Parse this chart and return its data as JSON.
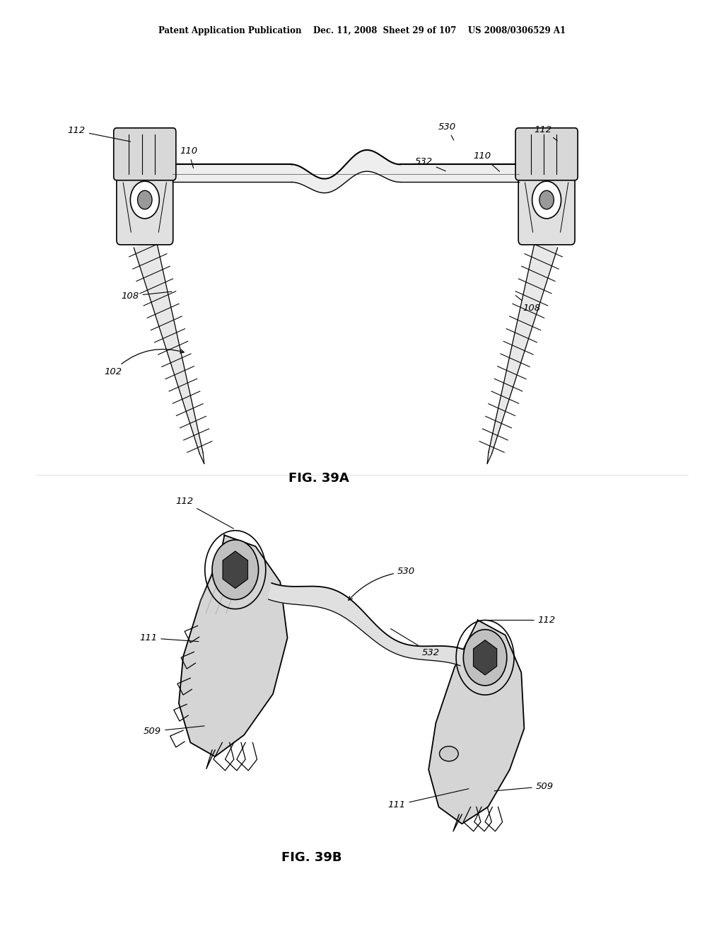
{
  "background_color": "#ffffff",
  "header_text": "Patent Application Publication    Dec. 11, 2008  Sheet 29 of 107    US 2008/0306529 A1",
  "fig39a_label": "FIG. 39A",
  "fig39b_label": "FIG. 39B"
}
